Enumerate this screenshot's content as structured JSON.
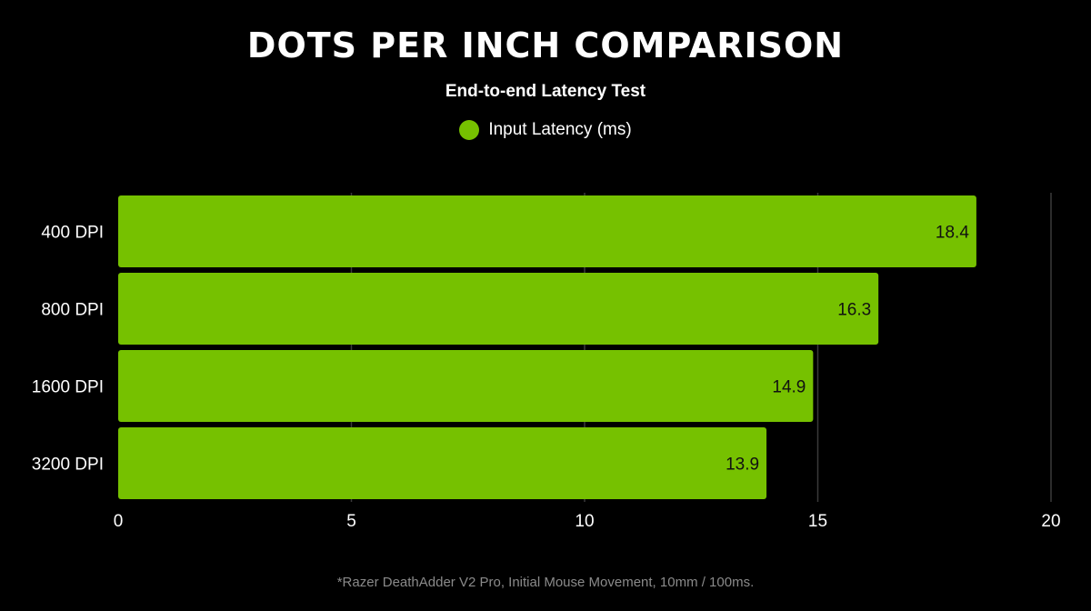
{
  "chart_data": {
    "type": "bar",
    "orientation": "horizontal",
    "title": "DOTS PER INCH COMPARISON",
    "subtitle": "End-to-end Latency Test",
    "categories": [
      "400 DPI",
      "800 DPI",
      "1600 DPI",
      "3200 DPI"
    ],
    "series": [
      {
        "name": "Input Latency (ms)",
        "values": [
          18.4,
          16.3,
          14.9,
          13.9
        ],
        "color": "#76c100"
      }
    ],
    "value_labels": [
      "18.4",
      "16.3",
      "14.9",
      "13.9"
    ],
    "xlim": [
      0,
      20
    ],
    "xticks": [
      0,
      5,
      10,
      15,
      20
    ],
    "xtick_labels": [
      "0",
      "5",
      "10",
      "15",
      "20"
    ],
    "grid": true,
    "legend_position": "top-center",
    "footnote": "*Razer DeathAdder V2 Pro, Initial Mouse Movement, 10mm / 100ms."
  },
  "colors": {
    "background": "#000000",
    "bar": "#76c100",
    "gridline": "#3a3a3a",
    "text": "#ffffff",
    "footnote": "#8a8a8a",
    "bar_label": "#111111"
  }
}
